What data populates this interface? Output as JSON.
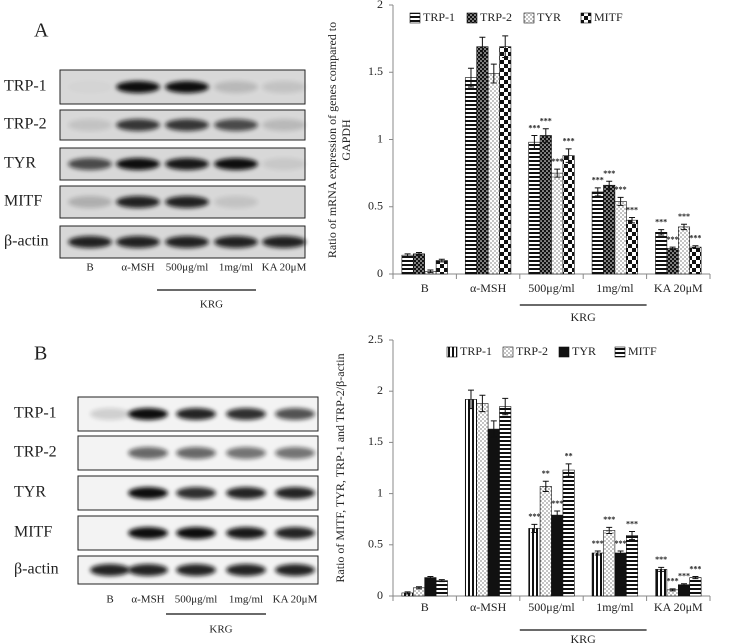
{
  "panels": [
    {
      "label": "A",
      "blot": {
        "rows": [
          "TRP-1",
          "TRP-2",
          "TYR",
          "MITF",
          "β-actin"
        ],
        "lanes": [
          "B",
          "α-MSH",
          "500μg/ml",
          "1mg/ml",
          "KA 20μM"
        ],
        "group_label": "KRG"
      }
    },
    {
      "label": "B",
      "blot": {
        "rows": [
          "TRP-1",
          "TRP-2",
          "TYR",
          "MITF",
          "β-actin"
        ],
        "lanes": [
          "B",
          "α-MSH",
          "500μg/ml",
          "1mg/ml",
          "KA 20μM"
        ],
        "group_label": "KRG"
      }
    }
  ],
  "chart_data": [
    {
      "type": "bar",
      "y_label": "Ratio of mRNA expression of genes compared to GAPDH",
      "categories": [
        "B",
        "α-MSH",
        "500μg/ml",
        "1mg/ml",
        "KA 20μM"
      ],
      "group_label": "KRG",
      "ylim": [
        0,
        2
      ],
      "yticks": [
        0,
        0.5,
        1,
        1.5,
        2
      ],
      "series": [
        {
          "name": "TRP-1",
          "pattern": "hstripes",
          "values": [
            0.14,
            1.46,
            0.98,
            0.61,
            0.31
          ],
          "errors": [
            0.01,
            0.07,
            0.05,
            0.03,
            0.02
          ],
          "significance": [
            null,
            null,
            "***",
            "***",
            "***"
          ]
        },
        {
          "name": "TRP-2",
          "pattern": "checks",
          "values": [
            0.15,
            1.69,
            1.03,
            0.66,
            0.19
          ],
          "errors": [
            0.01,
            0.07,
            0.05,
            0.03,
            0.01
          ],
          "significance": [
            null,
            null,
            "***",
            "***",
            "***"
          ]
        },
        {
          "name": "TYR",
          "pattern": "dots",
          "values": [
            0.02,
            1.49,
            0.75,
            0.54,
            0.35
          ],
          "errors": [
            0.01,
            0.07,
            0.03,
            0.03,
            0.02
          ],
          "significance": [
            null,
            null,
            "***",
            "***",
            "***"
          ]
        },
        {
          "name": "MITF",
          "pattern": "checker",
          "values": [
            0.1,
            1.69,
            0.88,
            0.4,
            0.2
          ],
          "errors": [
            0.01,
            0.08,
            0.05,
            0.02,
            0.01
          ],
          "significance": [
            null,
            null,
            "***",
            "***",
            "***"
          ]
        }
      ]
    },
    {
      "type": "bar",
      "y_label": "Ratio of MITF, TYR, TRP-1 and TRP-2/β-actin",
      "categories": [
        "B",
        "α-MSH",
        "500μg/ml",
        "1mg/ml",
        "KA 20μM"
      ],
      "group_label": "KRG",
      "ylim": [
        0,
        2.5
      ],
      "yticks": [
        0,
        0.5,
        1,
        1.5,
        2,
        2.5
      ],
      "series": [
        {
          "name": "TRP-1",
          "pattern": "vstripes",
          "values": [
            0.03,
            1.92,
            0.66,
            0.42,
            0.26
          ],
          "errors": [
            0.01,
            0.09,
            0.04,
            0.02,
            0.02
          ],
          "significance": [
            null,
            null,
            "***",
            "***",
            "***"
          ]
        },
        {
          "name": "TRP-2",
          "pattern": "dots",
          "values": [
            0.08,
            1.88,
            1.07,
            0.64,
            0.06
          ],
          "errors": [
            0.01,
            0.08,
            0.05,
            0.03,
            0.01
          ],
          "significance": [
            null,
            null,
            "**",
            "***",
            "***"
          ]
        },
        {
          "name": "TYR",
          "pattern": "solid",
          "values": [
            0.18,
            1.63,
            0.79,
            0.42,
            0.11
          ],
          "errors": [
            0.01,
            0.08,
            0.04,
            0.02,
            0.01
          ],
          "significance": [
            null,
            null,
            "***",
            "***",
            "***"
          ]
        },
        {
          "name": "MITF",
          "pattern": "hstripes",
          "values": [
            0.15,
            1.85,
            1.23,
            0.59,
            0.18
          ],
          "errors": [
            0.01,
            0.08,
            0.06,
            0.04,
            0.01
          ],
          "significance": [
            null,
            null,
            "**",
            "***",
            "***"
          ]
        }
      ]
    }
  ]
}
